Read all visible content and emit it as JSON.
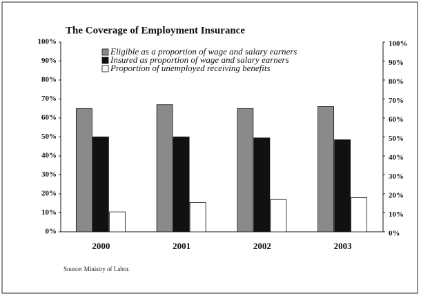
{
  "chart_data": {
    "type": "bar",
    "title": "The Coverage of Employment Insurance",
    "categories": [
      "2000",
      "2001",
      "2002",
      "2003"
    ],
    "series": [
      {
        "name": "Eligible as a proportion of wage and salary earners",
        "color": "#8a8a8a",
        "values": [
          65,
          67,
          65,
          66
        ]
      },
      {
        "name": "Insured as proportion of wage and salary earners",
        "color": "#111111",
        "values": [
          50,
          50,
          49.5,
          48.5
        ]
      },
      {
        "name": "Proportion of unemployed receiving benefits",
        "color": "#ffffff",
        "values": [
          10.5,
          15.5,
          17,
          18
        ]
      }
    ],
    "ylim": [
      0,
      100
    ],
    "yticks": [
      {
        "value": 0,
        "label": "0%"
      },
      {
        "value": 10,
        "label": "10%"
      },
      {
        "value": 20,
        "label": "20%"
      },
      {
        "value": 30,
        "label": "30%"
      },
      {
        "value": 40,
        "label": "40%"
      },
      {
        "value": 50,
        "label": "50%"
      },
      {
        "value": 60,
        "label": "60%"
      },
      {
        "value": 70,
        "label": "70%"
      },
      {
        "value": 80,
        "label": "80%"
      },
      {
        "value": 90,
        "label": "90%"
      },
      {
        "value": 100,
        "label": "100%"
      }
    ],
    "y2lim": [
      0,
      100
    ],
    "y2ticks": [
      {
        "value": 0,
        "label": "0%"
      },
      {
        "value": 10,
        "label": "10%"
      },
      {
        "value": 20,
        "label": "20%"
      },
      {
        "value": 30,
        "label": "30%"
      },
      {
        "value": 40,
        "label": "40%"
      },
      {
        "value": 50,
        "label": "50%"
      },
      {
        "value": 60,
        "label": "60%"
      },
      {
        "value": 70,
        "label": "70%"
      },
      {
        "value": 80,
        "label": "80%"
      },
      {
        "value": 90,
        "label": "90%"
      },
      {
        "value": 100,
        "label": "100%"
      }
    ],
    "grid": false,
    "source": "Source: Ministry of Labor."
  }
}
